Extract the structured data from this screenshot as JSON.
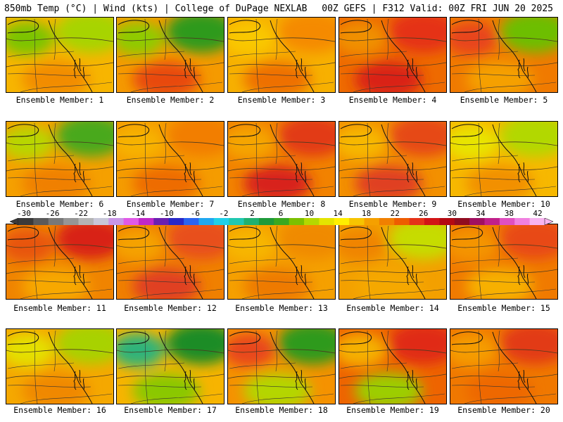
{
  "header": {
    "left": "850mb Temp (°C) | Wind (kts) | College of DuPage NEXLAB",
    "right": "00Z GEFS | F312 Valid: 00Z FRI JUN 20 2025"
  },
  "members": [
    {
      "label": "Ensemble Member: 1",
      "base": "#f7b500",
      "blobs": [
        {
          "c": "#a7d400"
        },
        {
          "c": "#7cc400"
        },
        {
          "c": "#f28c00"
        }
      ]
    },
    {
      "label": "Ensemble Member: 2",
      "base": "#f59a00",
      "blobs": [
        {
          "c": "#2e9a1e"
        },
        {
          "c": "#8fcb00"
        },
        {
          "c": "#e84a0c"
        }
      ]
    },
    {
      "label": "Ensemble Member: 3",
      "base": "#f7b000",
      "blobs": [
        {
          "c": "#f58a00"
        },
        {
          "c": "#f9c800"
        },
        {
          "c": "#ee7000"
        }
      ]
    },
    {
      "label": "Ensemble Member: 4",
      "base": "#ee6a00",
      "blobs": [
        {
          "c": "#e53318"
        },
        {
          "c": "#f09000"
        },
        {
          "c": "#d92216"
        }
      ]
    },
    {
      "label": "Ensemble Member: 5",
      "base": "#f07a00",
      "blobs": [
        {
          "c": "#6dbe00"
        },
        {
          "c": "#e8451a"
        },
        {
          "c": "#f5a000"
        }
      ]
    },
    {
      "label": "Ensemble Member: 6",
      "base": "#f5a000",
      "blobs": [
        {
          "c": "#4aa91e"
        },
        {
          "c": "#b8d600"
        },
        {
          "c": "#f08000"
        }
      ]
    },
    {
      "label": "Ensemble Member: 7",
      "base": "#f59c00",
      "blobs": [
        {
          "c": "#f27e00"
        },
        {
          "c": "#f7b200"
        },
        {
          "c": "#ee6c00"
        }
      ]
    },
    {
      "label": "Ensemble Member: 8",
      "base": "#f28200",
      "blobs": [
        {
          "c": "#e23a18"
        },
        {
          "c": "#f5a500"
        },
        {
          "c": "#d8241a"
        }
      ]
    },
    {
      "label": "Ensemble Member: 9",
      "base": "#f39000",
      "blobs": [
        {
          "c": "#e64818"
        },
        {
          "c": "#f7b800"
        },
        {
          "c": "#e04020"
        }
      ]
    },
    {
      "label": "Ensemble Member: 10",
      "base": "#f7b800",
      "blobs": [
        {
          "c": "#b2d800"
        },
        {
          "c": "#e8e400"
        },
        {
          "c": "#f29000"
        }
      ]
    },
    {
      "label": "Ensemble Member: 11",
      "base": "#f08400",
      "blobs": [
        {
          "c": "#d82218"
        },
        {
          "c": "#e85410"
        },
        {
          "c": "#f7a800"
        }
      ]
    },
    {
      "label": "Ensemble Member: 12",
      "base": "#f08000",
      "blobs": [
        {
          "c": "#e8501a"
        },
        {
          "c": "#f5a200"
        },
        {
          "c": "#e04020"
        }
      ]
    },
    {
      "label": "Ensemble Member: 13",
      "base": "#f5a000",
      "blobs": [
        {
          "c": "#f08a00"
        },
        {
          "c": "#f7b600"
        },
        {
          "c": "#ee7a00"
        }
      ]
    },
    {
      "label": "Ensemble Member: 14",
      "base": "#f3a000",
      "blobs": [
        {
          "c": "#c6dc00"
        },
        {
          "c": "#f08400"
        },
        {
          "c": "#f5a800"
        }
      ]
    },
    {
      "label": "Ensemble Member: 15",
      "base": "#f07a00",
      "blobs": [
        {
          "c": "#e84a18"
        },
        {
          "c": "#f49400"
        },
        {
          "c": "#f7b000"
        }
      ]
    },
    {
      "label": "Ensemble Member: 16",
      "base": "#f5a800",
      "blobs": [
        {
          "c": "#a8d200"
        },
        {
          "c": "#e4e000"
        },
        {
          "c": "#f08800"
        }
      ]
    },
    {
      "label": "Ensemble Member: 17",
      "base": "#f7b400",
      "blobs": [
        {
          "c": "#1f8c25"
        },
        {
          "c": "#2fb37a"
        },
        {
          "c": "#8ac800"
        }
      ]
    },
    {
      "label": "Ensemble Member: 18",
      "base": "#f59200",
      "blobs": [
        {
          "c": "#2e9a1e"
        },
        {
          "c": "#e8461a"
        },
        {
          "c": "#b4d600"
        }
      ]
    },
    {
      "label": "Ensemble Member: 19",
      "base": "#ee6400",
      "blobs": [
        {
          "c": "#e02a18"
        },
        {
          "c": "#f5b000"
        },
        {
          "c": "#9cce00"
        }
      ]
    },
    {
      "label": "Ensemble Member: 20",
      "base": "#f07800",
      "blobs": [
        {
          "c": "#e23a18"
        },
        {
          "c": "#f59c00"
        },
        {
          "c": "#ee6800"
        }
      ]
    }
  ],
  "colorbar": {
    "labels": [
      "-30",
      "-26",
      "-22",
      "-18",
      "-14",
      "-10",
      "-6",
      "-2",
      "2",
      "6",
      "10",
      "14",
      "18",
      "22",
      "26",
      "30",
      "34",
      "38",
      "42"
    ],
    "colors": [
      "#3a3a3a",
      "#5a5a5a",
      "#787878",
      "#969696",
      "#b4b4b4",
      "#c8c8d8",
      "#c896e6",
      "#e05ae6",
      "#c028c8",
      "#6a20b0",
      "#2828c8",
      "#2a64f0",
      "#20a8f0",
      "#20d0e8",
      "#20c8b0",
      "#20b070",
      "#1e9a3a",
      "#3aa820",
      "#7cc000",
      "#b4d800",
      "#e4e400",
      "#ffef00",
      "#f7c400",
      "#f5a000",
      "#f08000",
      "#ee5c00",
      "#e53318",
      "#d21416",
      "#b40a12",
      "#900c20",
      "#a01060",
      "#c0208a",
      "#e050c0",
      "#f080e0",
      "#f8b4f0"
    ]
  }
}
